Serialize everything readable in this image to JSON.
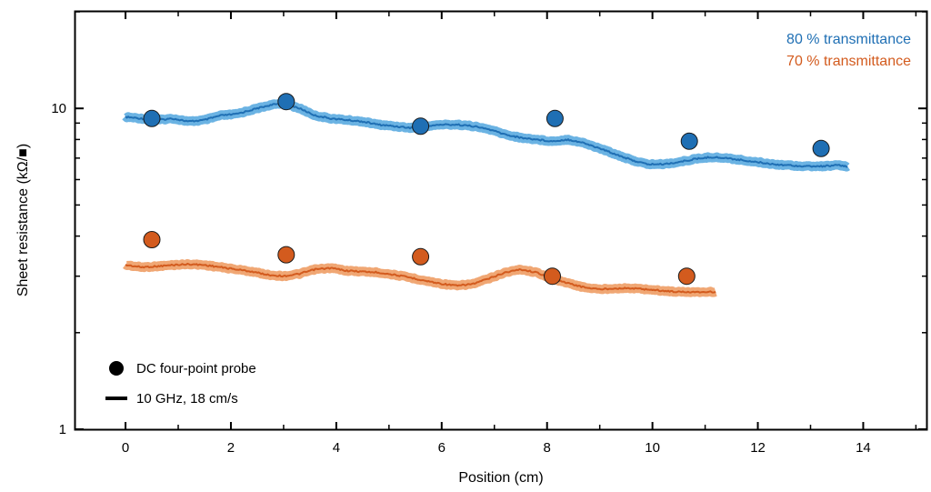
{
  "chart_data": {
    "type": "scatter",
    "xlabel": "Position (cm)",
    "ylabel": "Sheet resistance (kΩ/■)",
    "xlim": [
      -0.95,
      15.2
    ],
    "ylim": [
      1,
      20
    ],
    "yscale": "log",
    "xticks": [
      0,
      2,
      4,
      6,
      8,
      10,
      12,
      14
    ],
    "xtick_labels": [
      "0",
      "2",
      "4",
      "6",
      "8",
      "10",
      "12",
      "14"
    ],
    "yticks": [
      1,
      10
    ],
    "ytick_labels": [
      "1",
      "10"
    ],
    "legend": {
      "placement": "bottom-left",
      "entries": [
        {
          "label": "DC four-point probe",
          "marker": "circle"
        },
        {
          "label": "10 GHz, 18 cm/s",
          "marker": "line"
        }
      ]
    },
    "series": [
      {
        "name": "80 % transmittance",
        "color": "#1F6FB4",
        "band_color": "#6BB3E3",
        "dc_points": {
          "x": [
            0.5,
            3.05,
            5.6,
            8.15,
            10.7,
            13.2
          ],
          "y": [
            9.3,
            10.5,
            8.8,
            9.3,
            7.9,
            7.5
          ]
        },
        "line": {
          "x": [
            0,
            0.3,
            0.6,
            0.9,
            1.2,
            1.5,
            1.8,
            2.1,
            2.4,
            2.7,
            3.0,
            3.3,
            3.6,
            3.9,
            4.2,
            4.5,
            4.8,
            5.1,
            5.4,
            5.7,
            6.0,
            6.3,
            6.6,
            6.9,
            7.2,
            7.5,
            7.8,
            8.1,
            8.4,
            8.7,
            9.0,
            9.3,
            9.6,
            9.9,
            10.2,
            10.5,
            10.8,
            11.1,
            11.4,
            11.7,
            12.0,
            12.3,
            12.6,
            12.9,
            13.2,
            13.5,
            13.7
          ],
          "y": [
            9.4,
            9.3,
            9.2,
            9.3,
            9.1,
            9.2,
            9.5,
            9.6,
            9.9,
            10.2,
            10.4,
            10.0,
            9.5,
            9.3,
            9.2,
            9.1,
            8.9,
            8.8,
            8.7,
            8.8,
            8.9,
            8.9,
            8.8,
            8.6,
            8.3,
            8.1,
            8.0,
            7.9,
            8.0,
            7.8,
            7.5,
            7.2,
            6.9,
            6.7,
            6.7,
            6.8,
            6.95,
            7.05,
            7.0,
            6.9,
            6.8,
            6.7,
            6.65,
            6.6,
            6.6,
            6.65,
            6.6
          ]
        }
      },
      {
        "name": "70 % transmittance",
        "color": "#D35B1E",
        "band_color": "#F0A774",
        "dc_points": {
          "x": [
            0.5,
            3.05,
            5.6,
            8.1,
            10.65
          ],
          "y": [
            3.9,
            3.5,
            3.45,
            3.0,
            3.0
          ]
        },
        "line": {
          "x": [
            0,
            0.3,
            0.6,
            0.9,
            1.2,
            1.5,
            1.8,
            2.1,
            2.4,
            2.7,
            3.0,
            3.3,
            3.6,
            3.9,
            4.2,
            4.5,
            4.8,
            5.1,
            5.4,
            5.7,
            6.0,
            6.3,
            6.6,
            6.9,
            7.2,
            7.5,
            7.8,
            8.1,
            8.4,
            8.7,
            9.0,
            9.3,
            9.6,
            9.9,
            10.2,
            10.5,
            10.8,
            11.2
          ],
          "y": [
            3.25,
            3.2,
            3.22,
            3.25,
            3.27,
            3.25,
            3.2,
            3.15,
            3.1,
            3.03,
            3.0,
            3.05,
            3.15,
            3.18,
            3.12,
            3.1,
            3.08,
            3.03,
            2.97,
            2.9,
            2.84,
            2.8,
            2.84,
            2.95,
            3.08,
            3.15,
            3.08,
            2.95,
            2.85,
            2.77,
            2.73,
            2.75,
            2.75,
            2.73,
            2.7,
            2.68,
            2.68,
            2.68
          ]
        }
      }
    ]
  }
}
